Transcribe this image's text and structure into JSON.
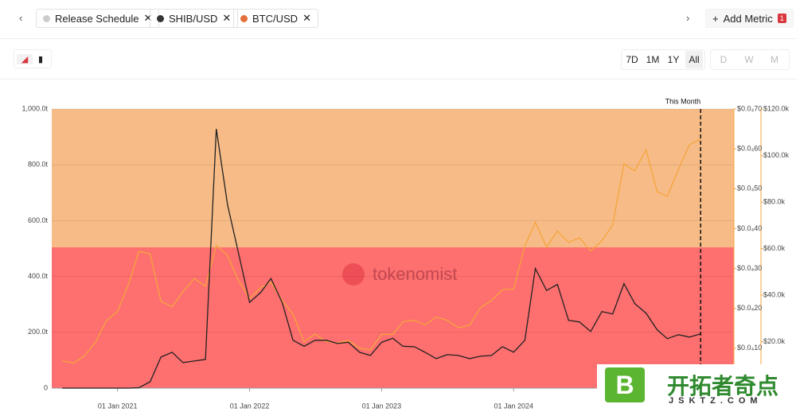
{
  "ui": {
    "tabs": [
      "Release Schedule",
      "SHIB/USD",
      "BTC/USD"
    ],
    "add_metric": "Add Metric",
    "badge": "1",
    "ranges": [
      "7D",
      "1M",
      "1Y",
      "All"
    ],
    "granularity": [
      "D",
      "W",
      "M"
    ],
    "watermark": "tokenomist",
    "logo": {
      "mark": "B",
      "name": "开拓者奇点",
      "url": "JSKTZ.COM"
    }
  },
  "chart_data": {
    "type": "line",
    "x": [
      "2020-08-01",
      "2020-09-01",
      "2020-10-01",
      "2020-11-01",
      "2020-12-01",
      "2021-01-01",
      "2021-02-01",
      "2021-03-01",
      "2021-04-01",
      "2021-05-01",
      "2021-06-01",
      "2021-07-01",
      "2021-08-01",
      "2021-09-01",
      "2021-10-01",
      "2021-11-01",
      "2021-12-01",
      "2022-01-01",
      "2022-02-01",
      "2022-03-01",
      "2022-04-01",
      "2022-05-01",
      "2022-06-01",
      "2022-07-01",
      "2022-08-01",
      "2022-09-01",
      "2022-10-01",
      "2022-11-01",
      "2022-12-01",
      "2023-01-01",
      "2023-02-01",
      "2023-03-01",
      "2023-04-01",
      "2023-05-01",
      "2023-06-01",
      "2023-07-01",
      "2023-08-01",
      "2023-09-01",
      "2023-10-01",
      "2023-11-01",
      "2023-12-01",
      "2024-01-01",
      "2024-02-01",
      "2024-03-01",
      "2024-04-01",
      "2024-05-01",
      "2024-06-01",
      "2024-07-01",
      "2024-08-01",
      "2024-09-01",
      "2024-10-01",
      "2024-11-01",
      "2024-12-01",
      "2025-01-01",
      "2025-02-01",
      "2025-03-01",
      "2025-04-01",
      "2025-05-01",
      "2025-06-01"
    ],
    "series": [
      {
        "name": "SHIB/USD",
        "color": "#222222",
        "axis": "y2",
        "values": [
          0,
          0,
          0,
          0,
          0,
          0,
          0,
          1e-07,
          1.6e-06,
          7.8e-06,
          9e-06,
          6.4e-06,
          6.8e-06,
          7.2e-06,
          6.5e-05,
          4.6e-05,
          3.4e-05,
          2.15e-05,
          2.4e-05,
          2.75e-05,
          2.15e-05,
          1.2e-05,
          1.05e-05,
          1.2e-05,
          1.2e-05,
          1.12e-05,
          1.15e-05,
          9e-06,
          8.2e-06,
          1.15e-05,
          1.25e-05,
          1.05e-05,
          1.04e-05,
          9e-06,
          7.4e-06,
          8.4e-06,
          8.2e-06,
          7.4e-06,
          8e-06,
          8.2e-06,
          1.04e-05,
          9e-06,
          1.2e-05,
          3e-05,
          2.45e-05,
          2.6e-05,
          1.7e-05,
          1.66e-05,
          1.42e-05,
          1.92e-05,
          1.86e-05,
          2.62e-05,
          2.12e-05,
          1.88e-05,
          1.46e-05,
          1.24e-05,
          1.34e-05,
          1.28e-05,
          1.36e-05
        ]
      },
      {
        "name": "BTC/USD",
        "color": "#f5a53c",
        "axis": "y3",
        "values": [
          11700,
          10800,
          13800,
          19700,
          29000,
          33000,
          45000,
          58800,
          57700,
          37300,
          35000,
          41500,
          47100,
          43800,
          61300,
          57000,
          46300,
          38500,
          43200,
          45500,
          37700,
          31800,
          19900,
          23300,
          20000,
          19400,
          20500,
          17200,
          16500,
          23100,
          23100,
          28500,
          29200,
          27200,
          30500,
          29200,
          26000,
          27000,
          34500,
          37700,
          42300,
          42600,
          61200,
          71300,
          60600,
          67500,
          62700,
          64600,
          59000,
          63300,
          70200,
          96400,
          93400,
          102400,
          84400,
          82500,
          94200,
          104600,
          107100
        ]
      }
    ],
    "xlim": [
      "2020-07-03",
      "2025-09-01"
    ],
    "xticks": [
      {
        "value": "2021-01-01",
        "label": "01 Jan 2021"
      },
      {
        "value": "2022-01-01",
        "label": "01 Jan 2022"
      },
      {
        "value": "2023-01-01",
        "label": "01 Jan 2023"
      },
      {
        "value": "2024-01-01",
        "label": "01 Jan 2024"
      }
    ],
    "ylim": [
      0,
      1000
    ],
    "yticks": [
      0,
      {
        "value": 200,
        "label": "200.0t"
      },
      {
        "value": 400,
        "label": "400.0t"
      },
      {
        "value": 600,
        "label": "600.0t"
      },
      {
        "value": 800,
        "label": "800.0t"
      },
      {
        "value": 1000,
        "label": "1,000.0t"
      }
    ],
    "y2lim": [
      0,
      7e-05
    ],
    "y2ticks": [
      {
        "value": 1e-05,
        "label": "$0.0₄10"
      },
      {
        "value": 2e-05,
        "label": "$0.0₄20"
      },
      {
        "value": 3e-05,
        "label": "$0.0₄30"
      },
      {
        "value": 4e-05,
        "label": "$0.0₄40"
      },
      {
        "value": 5e-05,
        "label": "$0.0₄50"
      },
      {
        "value": 6e-05,
        "label": "$0.0₄60"
      },
      {
        "value": 7e-05,
        "label": "$0.0₄70"
      }
    ],
    "y3lim": [
      0,
      120000
    ],
    "y3ticks": [
      {
        "value": 20000,
        "label": "$20.0k"
      },
      {
        "value": 40000,
        "label": "$40.0k"
      },
      {
        "value": 60000,
        "label": "$60.0k"
      },
      {
        "value": 80000,
        "label": "$80.0k"
      },
      {
        "value": 100000,
        "label": "$100.0k"
      },
      {
        "value": 120000,
        "label": "$120.0k"
      }
    ],
    "grid": true,
    "annotation": {
      "text": "This Month",
      "x": "2025-06-01"
    }
  }
}
